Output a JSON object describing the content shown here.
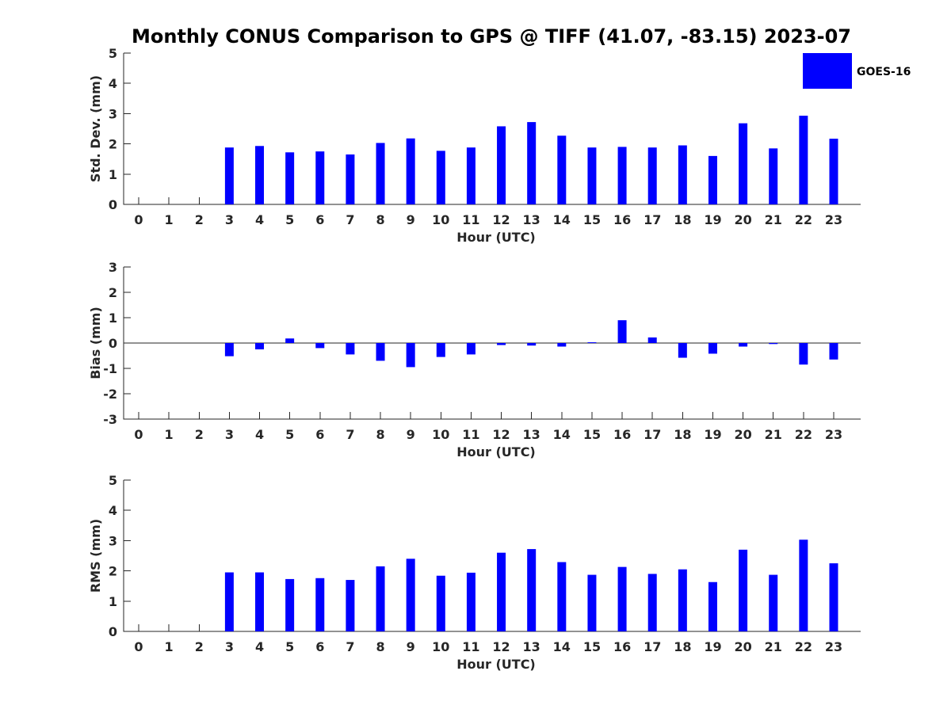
{
  "figure": {
    "title": "Monthly CONUS Comparison to GPS @ TIFF (41.07, -83.15) 2023-07"
  },
  "legend": {
    "label": "GOES-16",
    "color": "#0000ff"
  },
  "chart_data": [
    {
      "type": "bar",
      "categories": [
        "0",
        "1",
        "2",
        "3",
        "4",
        "5",
        "6",
        "7",
        "8",
        "9",
        "10",
        "11",
        "12",
        "13",
        "14",
        "15",
        "16",
        "17",
        "18",
        "19",
        "20",
        "21",
        "22",
        "23"
      ],
      "series": [
        {
          "name": "GOES-16",
          "values": [
            null,
            null,
            null,
            1.88,
            1.93,
            1.72,
            1.75,
            1.65,
            2.03,
            2.18,
            1.77,
            1.88,
            2.58,
            2.72,
            2.27,
            1.88,
            1.9,
            1.88,
            1.95,
            1.6,
            2.68,
            1.85,
            2.93,
            2.17
          ]
        }
      ],
      "xlabel": "Hour (UTC)",
      "ylabel": "Std. Dev. (mm)",
      "ylim": [
        0,
        5
      ],
      "yticks": [
        0,
        1,
        2,
        3,
        4,
        5
      ],
      "grid": false,
      "legend": "top-right"
    },
    {
      "type": "bar",
      "categories": [
        "0",
        "1",
        "2",
        "3",
        "4",
        "5",
        "6",
        "7",
        "8",
        "9",
        "10",
        "11",
        "12",
        "13",
        "14",
        "15",
        "16",
        "17",
        "18",
        "19",
        "20",
        "21",
        "22",
        "23"
      ],
      "series": [
        {
          "name": "GOES-16",
          "values": [
            null,
            null,
            null,
            -0.52,
            -0.25,
            0.18,
            -0.2,
            -0.45,
            -0.7,
            -0.95,
            -0.55,
            -0.45,
            -0.08,
            -0.1,
            -0.14,
            0.03,
            0.9,
            0.22,
            -0.58,
            -0.42,
            -0.14,
            -0.04,
            -0.85,
            -0.65
          ]
        }
      ],
      "xlabel": "Hour (UTC)",
      "ylabel": "Bias (mm)",
      "ylim": [
        -3,
        3
      ],
      "yticks": [
        -3,
        -2,
        -1,
        0,
        1,
        2,
        3
      ],
      "grid": false
    },
    {
      "type": "bar",
      "categories": [
        "0",
        "1",
        "2",
        "3",
        "4",
        "5",
        "6",
        "7",
        "8",
        "9",
        "10",
        "11",
        "12",
        "13",
        "14",
        "15",
        "16",
        "17",
        "18",
        "19",
        "20",
        "21",
        "22",
        "23"
      ],
      "series": [
        {
          "name": "GOES-16",
          "values": [
            null,
            null,
            null,
            1.95,
            1.95,
            1.73,
            1.76,
            1.7,
            2.15,
            2.4,
            1.84,
            1.94,
            2.6,
            2.72,
            2.29,
            1.87,
            2.13,
            1.9,
            2.05,
            1.63,
            2.7,
            1.87,
            3.03,
            2.25
          ]
        }
      ],
      "xlabel": "Hour (UTC)",
      "ylabel": "RMS (mm)",
      "ylim": [
        0,
        5
      ],
      "yticks": [
        0,
        1,
        2,
        3,
        4,
        5
      ],
      "grid": false
    }
  ]
}
